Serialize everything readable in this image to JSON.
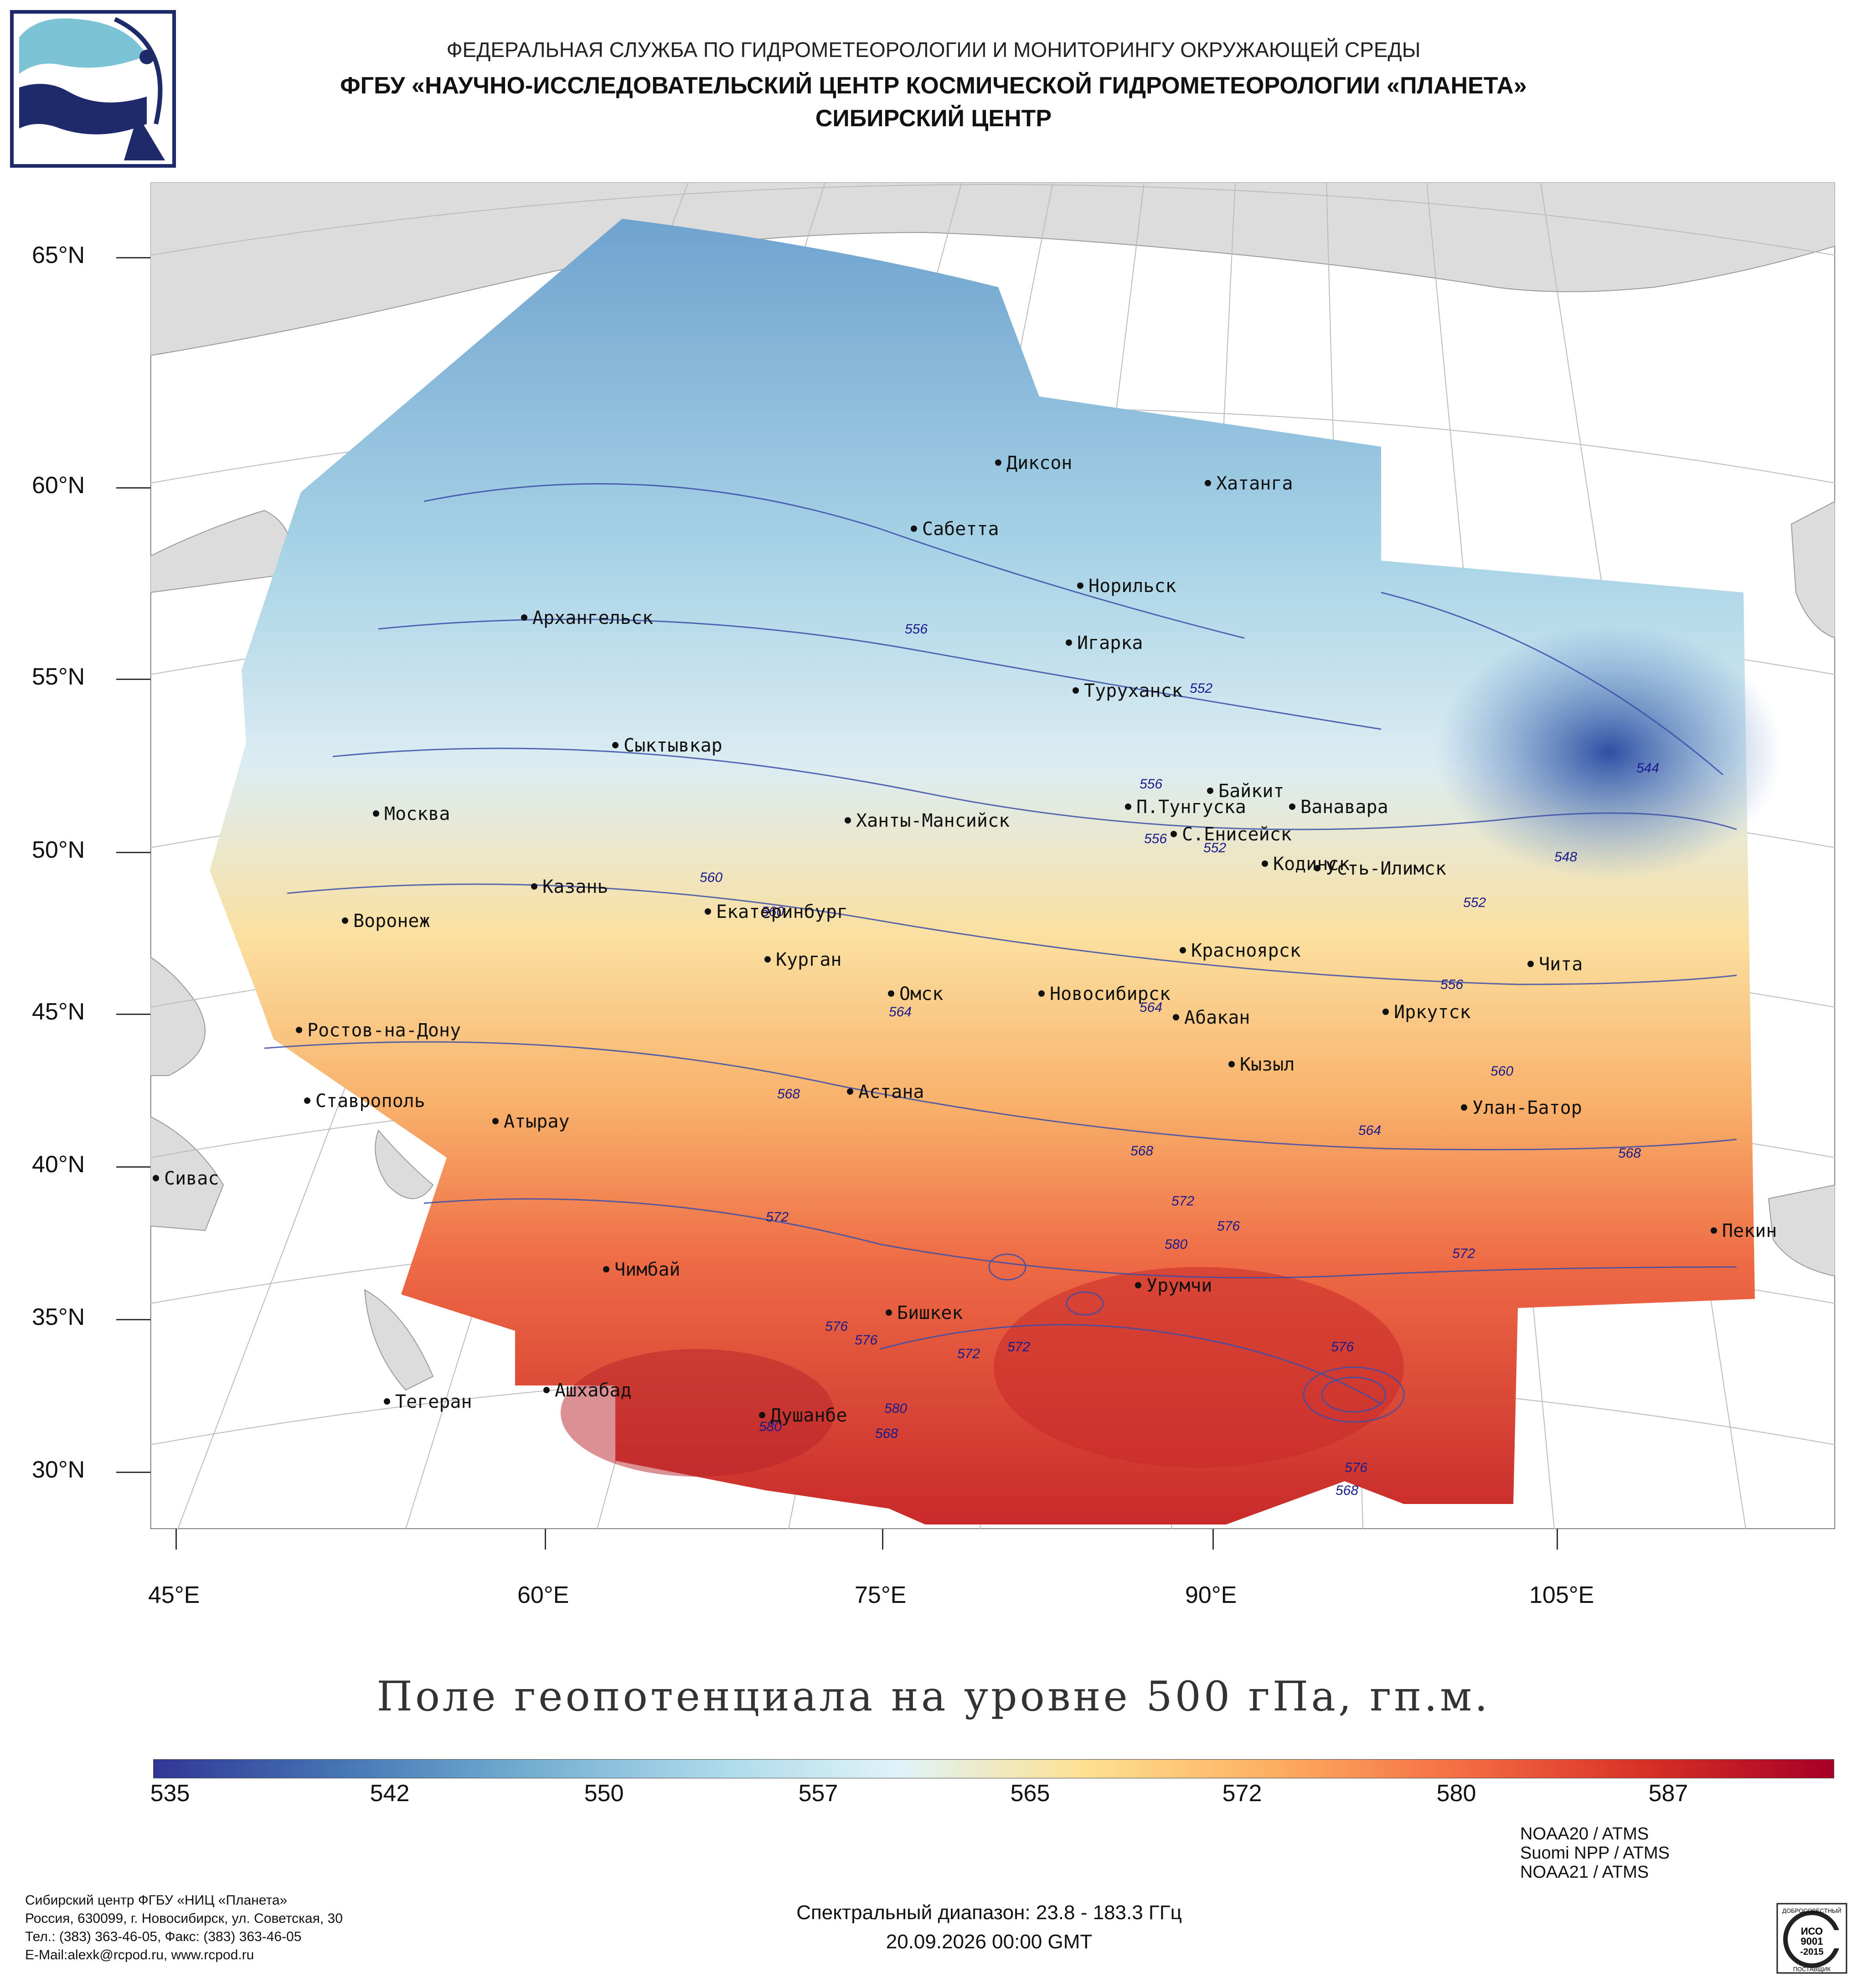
{
  "header": {
    "line1": "ФЕДЕРАЛЬНАЯ СЛУЖБА ПО ГИДРОМЕТЕОРОЛОГИИ И МОНИТОРИНГУ ОКРУЖАЮЩЕЙ СРЕДЫ",
    "line2": "ФГБУ «НАУЧНО-ИССЛЕДОВАТЕЛЬСКИЙ ЦЕНТР КОСМИЧЕСКОЙ ГИДРОМЕТЕОРОЛОГИИ «ПЛАНЕТА»",
    "line3": "СИБИРСКИЙ ЦЕНТР"
  },
  "map": {
    "lat_labels": [
      "65°N",
      "60°N",
      "55°N",
      "50°N",
      "45°N",
      "40°N",
      "35°N",
      "30°N"
    ],
    "lon_labels": [
      "45°E",
      "60°E",
      "75°E",
      "90°E",
      "105°E"
    ],
    "cities": [
      "Диксон",
      "Хатанга",
      "Сабетта",
      "Норильск",
      "Архангельск",
      "Игарка",
      "Туруханск",
      "Сыктывкар",
      "Байкит",
      "П.Тунгуска",
      "Ванавара",
      "Москва",
      "Ханты-Мансийск",
      "С.Енисейск",
      "Кодинск",
      "Усть-Илимск",
      "Казань",
      "Екатеринбург",
      "Воронеж",
      "Красноярск",
      "Курган",
      "Чита",
      "Омск",
      "Новосибирск",
      "Иркутск",
      "Абакан",
      "Ростов-на-Дону",
      "Кызыл",
      "Астана",
      "Ставрополь",
      "Улан-Батор",
      "Атырау",
      "Сивас",
      "Пекин",
      "Чимбай",
      "Урумчи",
      "Бишкек",
      "Ашхабад",
      "Тегеран",
      "Душанбе"
    ],
    "isolines": [
      "556",
      "552",
      "556",
      "556",
      "552",
      "544",
      "548",
      "552",
      "556",
      "560",
      "560",
      "564",
      "564",
      "568",
      "560",
      "564",
      "568",
      "568",
      "572",
      "572",
      "576",
      "580",
      "572",
      "576",
      "576",
      "572",
      "572",
      "576",
      "580",
      "580",
      "568",
      "576",
      "568"
    ]
  },
  "subtitle": "Поле геопотенциала на уровне 500 гПа, гп.м.",
  "colorbar": {
    "ticks": [
      "535",
      "542",
      "550",
      "557",
      "565",
      "572",
      "580",
      "587"
    ],
    "colors": [
      "#313695",
      "#4575b4",
      "#74add1",
      "#abd9e9",
      "#e0f3f8",
      "#fee090",
      "#fdae61",
      "#f46d43",
      "#d73027",
      "#a50026"
    ]
  },
  "footer": {
    "org": "Сибирский центр ФГБУ «НИЦ «Планета»",
    "address": "Россия, 630099, г. Новосибирск, ул. Советская, 30",
    "phone": "Тел.: (383) 363-46-05, Факс: (383) 363-46-05",
    "email": "E-Mail:alexk@rcpod.ru, www.rcpod.ru",
    "spectral": "Спектральный диапазон: 23.8 - 183.3 ГГц",
    "datetime": "20.09.2026 00:00 GMT",
    "sat1": "NOAA20 / ATMS",
    "sat2": "Suomi NPP / ATMS",
    "sat3": "NOAA21 / ATMS"
  },
  "badge": {
    "top": "ДОБРОСОВЕСТНЫЙ",
    "mid1": "ИСО",
    "mid2": "9001",
    "mid3": "-2015",
    "bottom": "ПОСТАВЩИК"
  }
}
